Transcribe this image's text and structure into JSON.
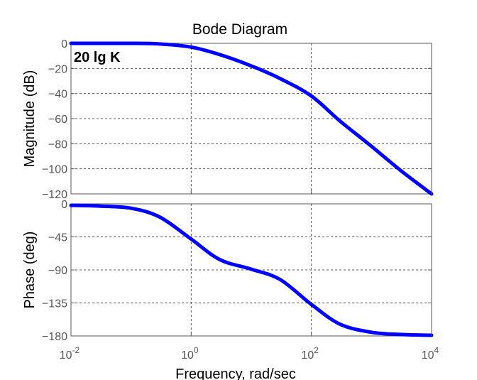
{
  "chart_data": {
    "type": "line",
    "title": "Bode Diagram",
    "xlabel": "Frequency, rad/sec",
    "x_scale": "log",
    "xlim": [
      0.01,
      10000
    ],
    "x_ticks": [
      {
        "value": 0.01,
        "base": "10",
        "exp": "-2"
      },
      {
        "value": 1,
        "base": "10",
        "exp": "0"
      },
      {
        "value": 100,
        "base": "10",
        "exp": "2"
      },
      {
        "value": 10000,
        "base": "10",
        "exp": "4"
      }
    ],
    "grid": true,
    "subplots": [
      {
        "name": "magnitude",
        "ylabel": "Magnitude (dB)",
        "ylim": [
          -120,
          0
        ],
        "y_ticks": [
          0,
          -20,
          -40,
          -60,
          -80,
          -100,
          -120
        ],
        "annotation": "20 lg K",
        "color": "#0000ff",
        "x": [
          0.01,
          0.1,
          0.3,
          1,
          3,
          10,
          30,
          100,
          300,
          1000,
          3000,
          10000
        ],
        "y": [
          0,
          0,
          -0.5,
          -3,
          -9,
          -18,
          -28,
          -42,
          -62,
          -82,
          -101,
          -120
        ]
      },
      {
        "name": "phase",
        "ylabel": "Phase (deg)",
        "ylim": [
          -180,
          0
        ],
        "y_ticks": [
          0,
          -45,
          -90,
          -135,
          -180
        ],
        "color": "#0000ff",
        "x": [
          0.01,
          0.03,
          0.1,
          0.3,
          1,
          3,
          10,
          30,
          100,
          300,
          1000,
          3000,
          10000
        ],
        "y": [
          -2,
          -3,
          -6,
          -18,
          -48,
          -76,
          -89,
          -103,
          -137,
          -164,
          -175,
          -178,
          -179
        ]
      }
    ]
  }
}
